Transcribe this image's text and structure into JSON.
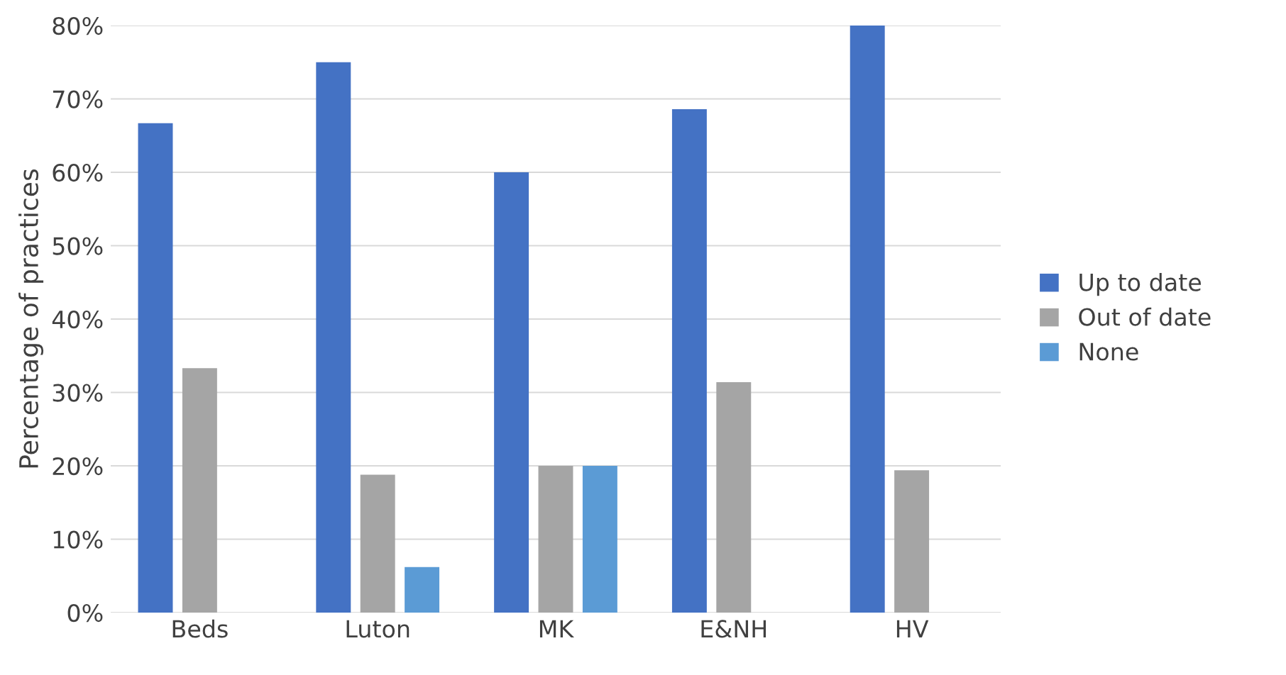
{
  "chart_data": {
    "type": "bar",
    "ylabel": "Percentage of practices",
    "categories": [
      "Beds",
      "Luton",
      "MK",
      "E&NH",
      "HV"
    ],
    "series": [
      {
        "name": "Up to date",
        "color": "#4472c4",
        "values": [
          66.7,
          75,
          60,
          68.6,
          80
        ]
      },
      {
        "name": "Out of date",
        "color": "#a5a5a5",
        "values": [
          33.3,
          18.8,
          20,
          31.4,
          19.4
        ]
      },
      {
        "name": "None",
        "color": "#5b9bd5",
        "values": [
          null,
          6.2,
          20,
          null,
          null
        ]
      }
    ],
    "ylim": [
      0,
      80
    ],
    "yticks": [
      {
        "value": 0,
        "label": "0%"
      },
      {
        "value": 10,
        "label": "10%"
      },
      {
        "value": 20,
        "label": "20%"
      },
      {
        "value": 30,
        "label": "30%"
      },
      {
        "value": 40,
        "label": "40%"
      },
      {
        "value": 50,
        "label": "50%"
      },
      {
        "value": 60,
        "label": "60%"
      },
      {
        "value": 70,
        "label": "70%"
      },
      {
        "value": 80,
        "label": "80%"
      }
    ],
    "grid": "y",
    "legend": "right"
  }
}
